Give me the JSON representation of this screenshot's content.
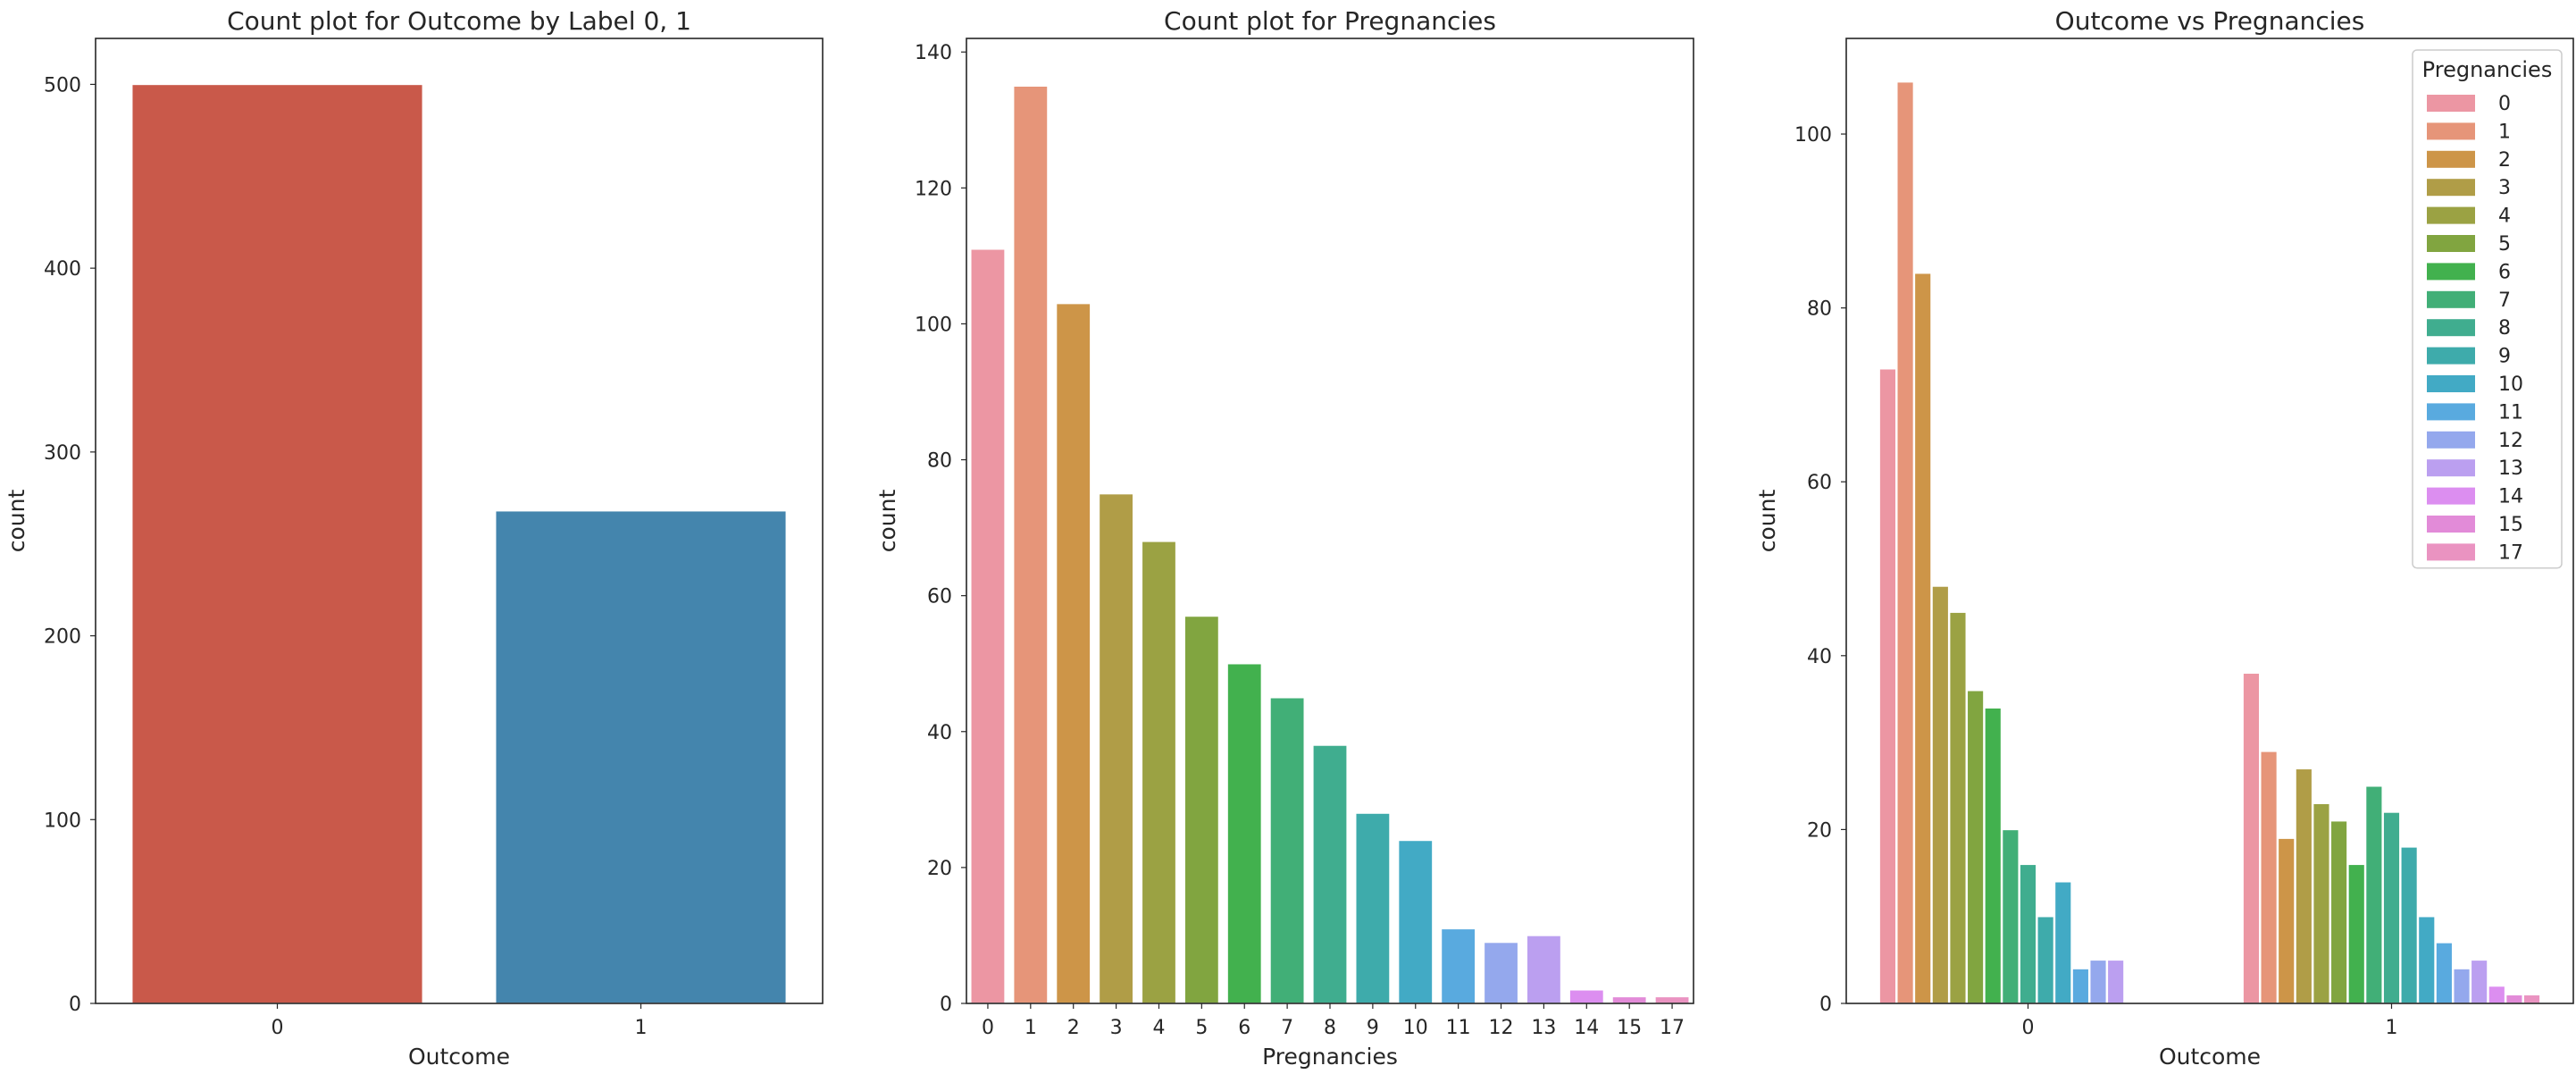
{
  "chart_data": [
    {
      "type": "bar",
      "title": "Count plot for Outcome by Label 0, 1",
      "xlabel": "Outcome",
      "ylabel": "count",
      "categories": [
        "0",
        "1"
      ],
      "values": [
        500,
        268
      ],
      "colors": [
        "#c9594a",
        "#4485ad"
      ],
      "ylim": [
        0,
        525
      ],
      "yticks": [
        0,
        100,
        200,
        300,
        400,
        500
      ],
      "grid": false
    },
    {
      "type": "bar",
      "title": "Count plot for Pregnancies",
      "xlabel": "Pregnancies",
      "ylabel": "count",
      "categories": [
        "0",
        "1",
        "2",
        "3",
        "4",
        "5",
        "6",
        "7",
        "8",
        "9",
        "10",
        "11",
        "12",
        "13",
        "14",
        "15",
        "17"
      ],
      "values": [
        111,
        135,
        103,
        75,
        68,
        57,
        50,
        45,
        38,
        28,
        24,
        11,
        9,
        10,
        2,
        1,
        1
      ],
      "colors": [
        "#ec96a3",
        "#e69579",
        "#cd9548",
        "#b09d47",
        "#9ba243",
        "#81a540",
        "#42b14e",
        "#41af77",
        "#40ad8f",
        "#3eabab",
        "#42aac5",
        "#59aadf",
        "#94a8ed",
        "#bb9ff0",
        "#dc8ef0",
        "#e28bd8",
        "#ea93c1"
      ],
      "ylim": [
        0,
        142
      ],
      "yticks": [
        0,
        20,
        40,
        60,
        80,
        100,
        120,
        140
      ],
      "grid": false
    },
    {
      "type": "bar",
      "title": "Outcome vs Pregnancies",
      "xlabel": "Outcome",
      "ylabel": "count",
      "categories": [
        "0",
        "1"
      ],
      "ylim": [
        0,
        111
      ],
      "yticks": [
        0,
        20,
        40,
        60,
        80,
        100
      ],
      "grid": false,
      "legend": {
        "title": "Pregnancies",
        "placement": "top-right"
      },
      "series": [
        {
          "name": "0",
          "color": "#ec96a3",
          "values": [
            73,
            38
          ]
        },
        {
          "name": "1",
          "color": "#e69579",
          "values": [
            106,
            29
          ]
        },
        {
          "name": "2",
          "color": "#cd9548",
          "values": [
            84,
            19
          ]
        },
        {
          "name": "3",
          "color": "#b09d47",
          "values": [
            48,
            27
          ]
        },
        {
          "name": "4",
          "color": "#9ba243",
          "values": [
            45,
            23
          ]
        },
        {
          "name": "5",
          "color": "#81a540",
          "values": [
            36,
            21
          ]
        },
        {
          "name": "6",
          "color": "#42b14e",
          "values": [
            34,
            16
          ]
        },
        {
          "name": "7",
          "color": "#41af77",
          "values": [
            20,
            25
          ]
        },
        {
          "name": "8",
          "color": "#40ad8f",
          "values": [
            16,
            22
          ]
        },
        {
          "name": "9",
          "color": "#3eabab",
          "values": [
            10,
            18
          ]
        },
        {
          "name": "10",
          "color": "#42aac5",
          "values": [
            14,
            10
          ]
        },
        {
          "name": "11",
          "color": "#59aadf",
          "values": [
            4,
            7
          ]
        },
        {
          "name": "12",
          "color": "#94a8ed",
          "values": [
            5,
            4
          ]
        },
        {
          "name": "13",
          "color": "#bb9ff0",
          "values": [
            5,
            5
          ]
        },
        {
          "name": "14",
          "color": "#dc8ef0",
          "values": [
            0,
            2
          ]
        },
        {
          "name": "15",
          "color": "#e28bd8",
          "values": [
            0,
            1
          ]
        },
        {
          "name": "17",
          "color": "#ea93c1",
          "values": [
            0,
            1
          ]
        }
      ]
    }
  ]
}
